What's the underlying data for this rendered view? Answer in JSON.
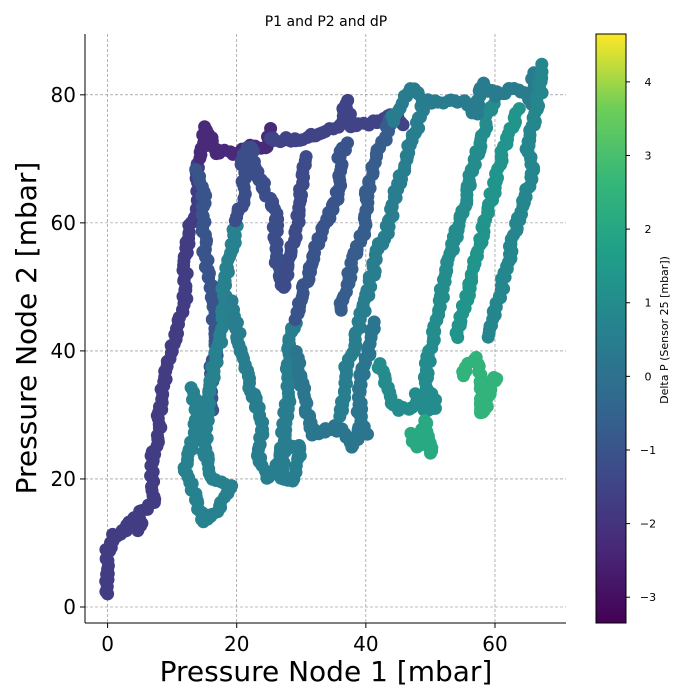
{
  "chart_data": {
    "type": "scatter",
    "title": "P1 and P2 and dP",
    "xlabel": "Pressure Node 1 [mbar]",
    "ylabel": "Pressure Node 2 [mbar]",
    "xlim": [
      -3.5,
      71
    ],
    "ylim": [
      -2.5,
      89.5
    ],
    "xticks": [
      0,
      20,
      40,
      60
    ],
    "yticks": [
      0,
      20,
      40,
      60,
      80
    ],
    "grid": true,
    "colorbar": {
      "label": "Delta P (Sensor 25 [mbar])",
      "colormap": "viridis",
      "range": [
        -3.35,
        4.65
      ],
      "ticks": [
        -3,
        -2,
        -1,
        0,
        1,
        2,
        3,
        4
      ]
    },
    "segments": [
      {
        "c": -1.7,
        "pts": [
          [
            0,
            2
          ],
          [
            0,
            9
          ],
          [
            1,
            11
          ],
          [
            3,
            12
          ],
          [
            4,
            14
          ],
          [
            5,
            12
          ],
          [
            5,
            15
          ],
          [
            7,
            16
          ],
          [
            7,
            24
          ],
          [
            8,
            26
          ],
          [
            8,
            30
          ],
          [
            9,
            36
          ],
          [
            10,
            40
          ],
          [
            11,
            45
          ],
          [
            12,
            48
          ],
          [
            12,
            55
          ],
          [
            13,
            60
          ],
          [
            14,
            62
          ],
          [
            14,
            70
          ]
        ]
      },
      {
        "c": -2.3,
        "pts": [
          [
            14,
            70
          ],
          [
            15,
            72
          ],
          [
            15,
            75
          ],
          [
            17,
            71
          ],
          [
            20,
            71
          ],
          [
            22,
            72
          ],
          [
            25,
            72
          ],
          [
            25,
            75
          ]
        ]
      },
      {
        "c": -1.5,
        "pts": [
          [
            25,
            73
          ],
          [
            30,
            73
          ],
          [
            33,
            74
          ],
          [
            36,
            75
          ],
          [
            37,
            79
          ],
          [
            38,
            75
          ],
          [
            42,
            76
          ],
          [
            45,
            77
          ],
          [
            46,
            75
          ]
        ]
      },
      {
        "c": -1.0,
        "pts": [
          [
            14,
            68
          ],
          [
            15,
            64
          ],
          [
            15,
            55
          ],
          [
            16,
            50
          ],
          [
            17,
            40
          ],
          [
            16,
            37
          ],
          [
            16,
            30
          ]
        ]
      },
      {
        "c": 0.6,
        "pts": [
          [
            13,
            34
          ],
          [
            14,
            30
          ],
          [
            13,
            25
          ],
          [
            12,
            22
          ],
          [
            13,
            19
          ],
          [
            14,
            16
          ],
          [
            15,
            13
          ],
          [
            17,
            15
          ],
          [
            19,
            19
          ],
          [
            16,
            20
          ],
          [
            15,
            25
          ],
          [
            16,
            35
          ],
          [
            17,
            40
          ],
          [
            18,
            45
          ],
          [
            18,
            50
          ],
          [
            19,
            55
          ],
          [
            20,
            60
          ]
        ]
      },
      {
        "c": -1.2,
        "pts": [
          [
            20,
            60
          ],
          [
            21,
            64
          ],
          [
            21,
            70
          ],
          [
            22,
            72
          ],
          [
            23,
            68
          ],
          [
            24,
            66
          ],
          [
            26,
            62
          ],
          [
            26,
            55
          ],
          [
            27,
            50
          ]
        ]
      },
      {
        "c": 0.5,
        "pts": [
          [
            19,
            48
          ],
          [
            20,
            44
          ],
          [
            21,
            38
          ],
          [
            22,
            35
          ],
          [
            23,
            32
          ],
          [
            24,
            28
          ],
          [
            23,
            24
          ],
          [
            25,
            20
          ],
          [
            26,
            22
          ],
          [
            28,
            25
          ],
          [
            30,
            25
          ],
          [
            29,
            20
          ],
          [
            27,
            20
          ],
          [
            27,
            25
          ],
          [
            28,
            33
          ],
          [
            28,
            40
          ],
          [
            29,
            45
          ]
        ]
      },
      {
        "c": -1.3,
        "pts": [
          [
            27,
            50
          ],
          [
            28,
            53
          ],
          [
            29,
            58
          ],
          [
            30,
            63
          ],
          [
            30,
            67
          ],
          [
            31,
            71
          ]
        ]
      },
      {
        "c": -1.0,
        "pts": [
          [
            29,
            45
          ],
          [
            30,
            48
          ],
          [
            31,
            52
          ],
          [
            32,
            55
          ],
          [
            33,
            58
          ],
          [
            34,
            60
          ],
          [
            35,
            63
          ],
          [
            36,
            66
          ],
          [
            36,
            70
          ],
          [
            37,
            73
          ]
        ]
      },
      {
        "c": 0.2,
        "pts": [
          [
            29,
            40
          ],
          [
            30,
            35
          ],
          [
            31,
            30
          ],
          [
            32,
            27
          ],
          [
            35,
            28
          ],
          [
            37,
            27
          ],
          [
            38,
            25
          ],
          [
            39,
            28
          ],
          [
            40,
            27
          ],
          [
            39,
            30
          ],
          [
            39,
            35
          ],
          [
            40,
            38
          ],
          [
            41,
            42
          ],
          [
            41,
            45
          ]
        ]
      },
      {
        "c": -0.7,
        "pts": [
          [
            36,
            46
          ],
          [
            37,
            50
          ],
          [
            38,
            54
          ],
          [
            39,
            57
          ],
          [
            40,
            60
          ],
          [
            40,
            64
          ],
          [
            41,
            68
          ],
          [
            42,
            72
          ],
          [
            43,
            73
          ],
          [
            44,
            77
          ]
        ]
      },
      {
        "c": 0.5,
        "pts": [
          [
            36,
            30
          ],
          [
            37,
            34
          ],
          [
            37,
            38
          ],
          [
            38,
            40
          ],
          [
            39,
            44
          ],
          [
            40,
            48
          ],
          [
            41,
            52
          ],
          [
            42,
            56
          ],
          [
            43,
            58
          ],
          [
            44,
            62
          ],
          [
            45,
            66
          ],
          [
            46,
            69
          ],
          [
            47,
            73
          ],
          [
            48,
            75
          ],
          [
            49,
            79
          ]
        ]
      },
      {
        "c": 1.0,
        "pts": [
          [
            42,
            38
          ],
          [
            43,
            35
          ],
          [
            44,
            32
          ],
          [
            45,
            31
          ],
          [
            47,
            31
          ],
          [
            48,
            33
          ],
          [
            49,
            31
          ],
          [
            51,
            31
          ],
          [
            49,
            35
          ],
          [
            50,
            40
          ],
          [
            51,
            45
          ],
          [
            52,
            50
          ],
          [
            53,
            55
          ],
          [
            54,
            58
          ],
          [
            55,
            62
          ],
          [
            56,
            66
          ],
          [
            57,
            70
          ],
          [
            58,
            73
          ],
          [
            59,
            77
          ],
          [
            60,
            79
          ]
        ]
      },
      {
        "c": 2.1,
        "pts": [
          [
            47,
            27
          ],
          [
            48,
            25
          ],
          [
            49,
            28
          ],
          [
            50,
            24
          ],
          [
            49,
            30
          ]
        ]
      },
      {
        "c": 0.4,
        "pts": [
          [
            44,
            76
          ],
          [
            46,
            79
          ],
          [
            47,
            81
          ],
          [
            49,
            79
          ],
          [
            52,
            79
          ],
          [
            55,
            79
          ],
          [
            57,
            77
          ],
          [
            58,
            82
          ],
          [
            60,
            80
          ],
          [
            63,
            81
          ],
          [
            65,
            80
          ],
          [
            66,
            78
          ],
          [
            66,
            84
          ]
        ]
      },
      {
        "c": 2.5,
        "pts": [
          [
            55,
            36
          ],
          [
            56,
            38
          ],
          [
            57,
            39
          ],
          [
            58,
            35
          ],
          [
            58,
            30
          ],
          [
            59,
            33
          ],
          [
            60,
            36
          ],
          [
            61,
            36
          ]
        ]
      },
      {
        "c": 1.3,
        "pts": [
          [
            54,
            42
          ],
          [
            55,
            46
          ],
          [
            56,
            50
          ],
          [
            57,
            54
          ],
          [
            58,
            58
          ],
          [
            59,
            62
          ],
          [
            60,
            66
          ],
          [
            61,
            70
          ],
          [
            62,
            74
          ],
          [
            63,
            76
          ],
          [
            64,
            78
          ]
        ]
      },
      {
        "c": 0.8,
        "pts": [
          [
            59,
            42
          ],
          [
            60,
            46
          ],
          [
            61,
            50
          ],
          [
            62,
            54
          ],
          [
            63,
            58
          ],
          [
            64,
            62
          ],
          [
            65,
            65
          ],
          [
            66,
            68
          ],
          [
            65,
            72
          ],
          [
            66,
            76
          ],
          [
            67,
            80
          ],
          [
            67,
            85
          ]
        ]
      }
    ]
  }
}
